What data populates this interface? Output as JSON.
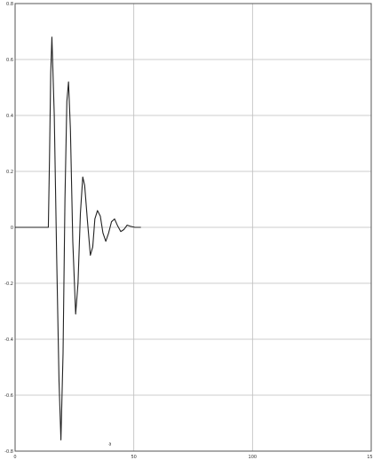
{
  "chart_data": {
    "type": "line",
    "title": "",
    "xlabel": "",
    "ylabel": "",
    "xlim": [
      0,
      150
    ],
    "ylim": [
      -0.8,
      0.8
    ],
    "x_ticks": [
      0,
      50,
      100,
      150
    ],
    "x_tick_labels": [
      "0",
      "50",
      "100",
      "150"
    ],
    "y_ticks": [
      0.8,
      0.6,
      0.4,
      0.2,
      0,
      -0.2,
      -0.4,
      -0.6,
      -0.8
    ],
    "y_tick_labels": [
      "0.8",
      "0.6",
      "0.4",
      "0.2",
      "0",
      "-0.2",
      "-0.4",
      "-0.6",
      "-0.8"
    ],
    "grid": true,
    "series": [
      {
        "color": "#222222",
        "x": [
          0,
          14,
          14.5,
          15,
          15.5,
          16.5,
          17.5,
          18.5,
          19.3,
          20.2,
          21,
          21.8,
          22.5,
          23.3,
          24.3,
          25.5,
          26.5,
          27.5,
          28.5,
          29.3,
          30.5,
          31.7,
          32.7,
          33.6,
          34.7,
          35.9,
          37,
          38.2,
          39.4,
          40.6,
          41.9,
          43.2,
          44.5,
          45.8,
          47.2,
          48.5,
          50.5,
          53
        ],
        "y": [
          0,
          0,
          0.25,
          0.55,
          0.68,
          0.4,
          -0.1,
          -0.55,
          -0.76,
          -0.45,
          0.1,
          0.45,
          0.52,
          0.35,
          -0.05,
          -0.31,
          -0.2,
          0.05,
          0.18,
          0.15,
          0.02,
          -0.1,
          -0.07,
          0.03,
          0.06,
          0.04,
          -0.02,
          -0.05,
          -0.02,
          0.02,
          0.03,
          0.005,
          -0.015,
          -0.008,
          0.008,
          0.004,
          0,
          0
        ]
      }
    ],
    "annotations": [
      {
        "x": 40,
        "y": -0.78,
        "text": "a"
      }
    ]
  }
}
